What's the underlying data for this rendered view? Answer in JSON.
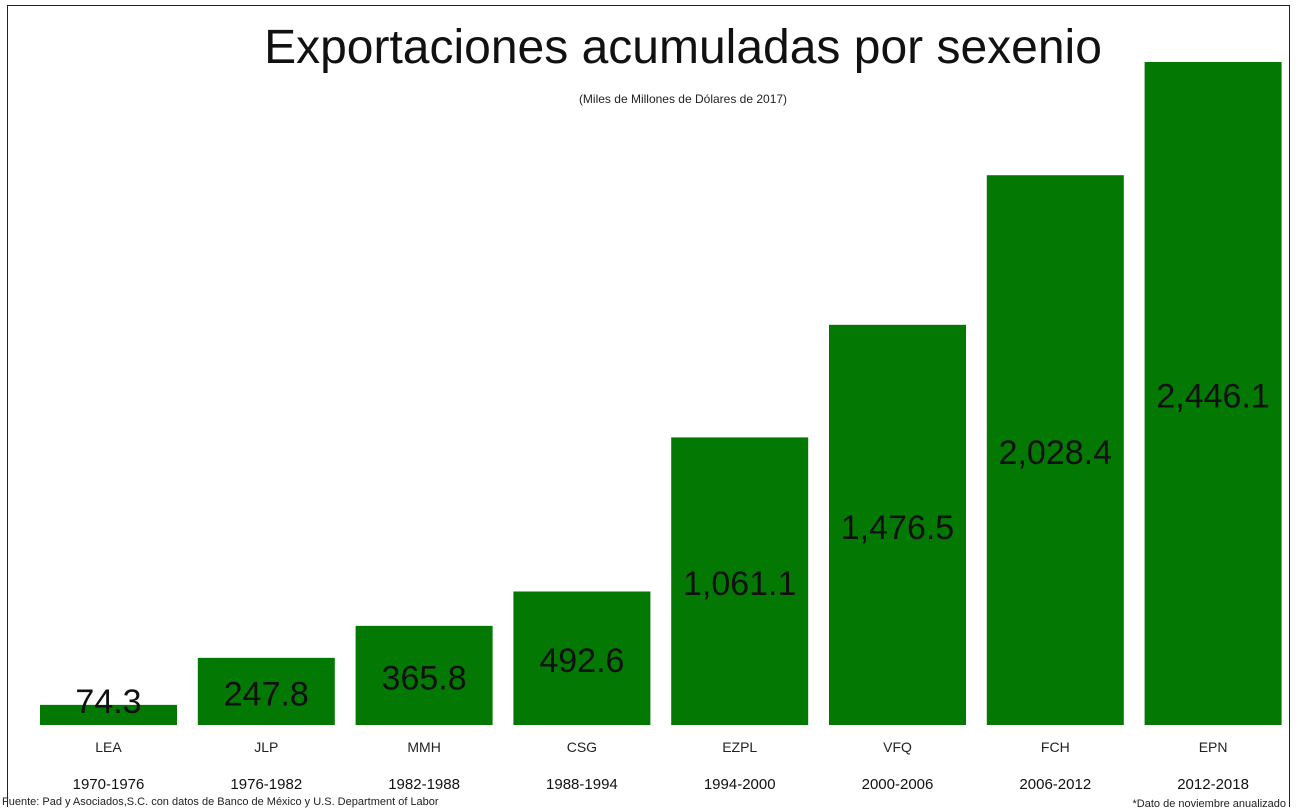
{
  "chart_data": {
    "type": "bar",
    "title": "Exportaciones acumuladas por sexenio",
    "subtitle": "(Miles de Millones de Dólares de 2017)",
    "categories": [
      "LEA",
      "JLP",
      "MMH",
      "CSG",
      "EZPL",
      "VFQ",
      "FCH",
      "EPN"
    ],
    "periods": [
      "1970-1976",
      "1976-1982",
      "1982-1988",
      "1988-1994",
      "1994-2000",
      "2000-2006",
      "2006-2012",
      "2012-2018"
    ],
    "values": [
      74.3,
      247.8,
      365.8,
      492.6,
      1061.1,
      1476.5,
      2028.4,
      2446.1
    ],
    "value_labels": [
      "74.3",
      "247.8",
      "365.8",
      "492.6",
      "1,061.1",
      "1,476.5",
      "2,028.4",
      "2,446.1"
    ],
    "ylim": [
      0,
      2446.1
    ],
    "bar_color": "#037803",
    "grid": false,
    "legend": "none"
  },
  "footer": {
    "source": "Fuente: Pad y Asociados,S.C. con datos de Banco de México y U.S. Department of Labor",
    "note": "*Dato de noviembre anualizado"
  }
}
